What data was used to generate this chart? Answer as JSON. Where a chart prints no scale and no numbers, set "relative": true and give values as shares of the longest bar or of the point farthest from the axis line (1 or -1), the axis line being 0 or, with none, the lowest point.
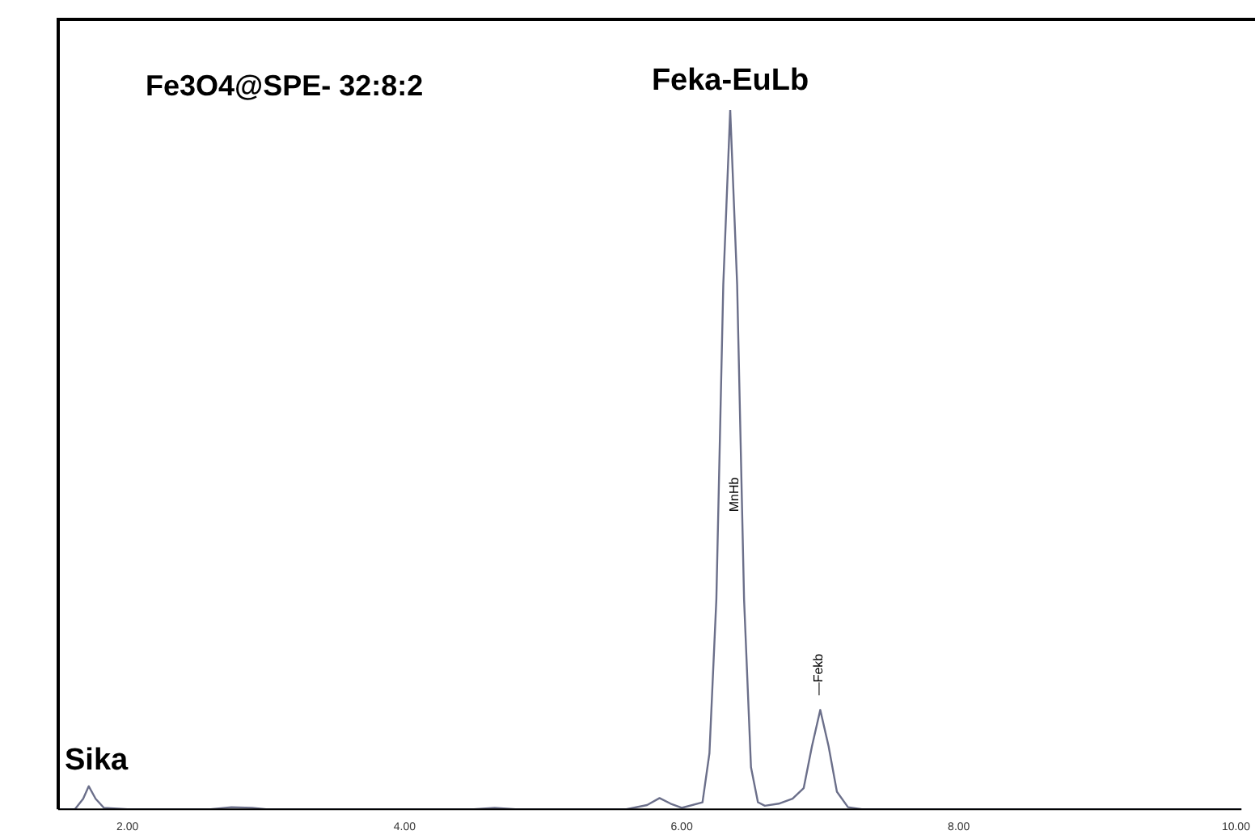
{
  "chart_data": {
    "type": "line",
    "title": "Fe3O4@SPE- 32:8:2",
    "relative": true,
    "grid": false,
    "legend": false,
    "marker": "none",
    "line_style": "solid",
    "xlim": [
      1.5,
      10.04
    ],
    "xticks": [
      {
        "value": 2,
        "label": "2.00"
      },
      {
        "value": 4,
        "label": "4.00"
      },
      {
        "value": 6,
        "label": "6.00"
      },
      {
        "value": 8,
        "label": "8.00"
      },
      {
        "value": 10,
        "label": "10.00"
      }
    ],
    "annotations": [
      {
        "text": "Feka-EuLb",
        "x": 6.35,
        "y": 1
      },
      {
        "text": "Sika",
        "x": 1.72,
        "y": 0.033
      },
      {
        "text": "MnHb",
        "x": 6.38,
        "y": 0.45
      },
      {
        "text": "—Fekb",
        "x": 7.0,
        "y": 0.142
      }
    ],
    "series": [
      {
        "color": "#6b6f8a",
        "x": [
          1.5,
          1.62,
          1.68,
          1.72,
          1.77,
          1.83,
          2.0,
          2.6,
          2.75,
          2.9,
          3.0,
          4.5,
          4.65,
          4.8,
          5.6,
          5.75,
          5.84,
          5.92,
          6.0,
          6.15,
          6.2,
          6.25,
          6.3,
          6.35,
          6.4,
          6.45,
          6.5,
          6.55,
          6.6,
          6.7,
          6.8,
          6.88,
          6.94,
          7.0,
          7.06,
          7.12,
          7.2,
          7.3,
          10.04
        ],
        "values": [
          0,
          0,
          0.015,
          0.033,
          0.015,
          0.002,
          0,
          0,
          0.003,
          0.002,
          0,
          0,
          0.002,
          0,
          0,
          0.006,
          0.016,
          0.008,
          0.002,
          0.01,
          0.08,
          0.3,
          0.75,
          1,
          0.75,
          0.3,
          0.06,
          0.01,
          0.005,
          0.008,
          0.015,
          0.03,
          0.09,
          0.142,
          0.09,
          0.025,
          0.003,
          0,
          0
        ]
      }
    ]
  }
}
